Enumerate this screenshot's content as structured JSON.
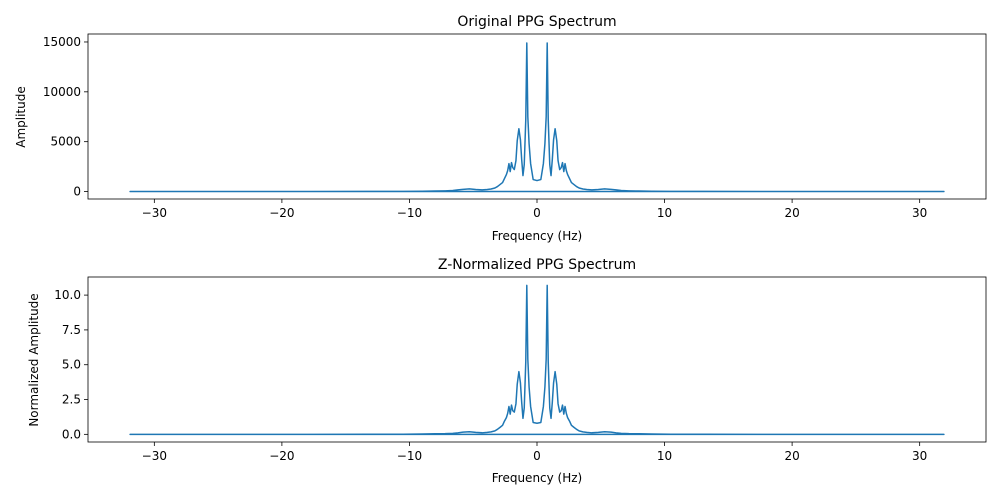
{
  "chart_data": [
    {
      "type": "line",
      "title": "Original PPG Spectrum",
      "xlabel": "Frequency (Hz)",
      "ylabel": "Amplitude",
      "xlim": [
        -35.2,
        35.2
      ],
      "ylim": [
        -750,
        15800
      ],
      "xticks": [
        -30,
        -20,
        -10,
        0,
        10,
        20,
        30
      ],
      "xtick_labels": [
        "−30",
        "−20",
        "−10",
        "0",
        "10",
        "20",
        "30"
      ],
      "yticks": [
        0,
        5000,
        10000,
        15000
      ],
      "ytick_labels": [
        "0",
        "5000",
        "10000",
        "15000"
      ],
      "grid": false,
      "series": [
        {
          "color": "#1f77b4",
          "x": [
            0,
            0.3,
            0.5,
            0.62,
            0.72,
            0.8,
            0.88,
            1.0,
            1.1,
            1.2,
            1.3,
            1.42,
            1.55,
            1.65,
            1.78,
            1.9,
            2.0,
            2.1,
            2.2,
            2.3,
            2.4,
            2.55,
            2.7,
            2.9,
            3.1,
            3.3,
            3.6,
            3.9,
            4.3,
            4.8,
            5.3,
            5.8,
            6.2,
            6.6,
            7.2,
            8.0,
            9.0,
            10.5,
            13.0,
            18.0,
            25.0,
            31.9,
            -31.9,
            -25.0,
            -18.0,
            -13.0,
            -10.5,
            -9.0,
            -8.0,
            -7.2,
            -6.6,
            -6.2,
            -5.8,
            -5.3,
            -4.8,
            -4.3,
            -3.9,
            -3.6,
            -3.3,
            -3.1,
            -2.9,
            -2.7,
            -2.55,
            -2.4,
            -2.3,
            -2.2,
            -2.1,
            -2.0,
            -1.9,
            -1.78,
            -1.65,
            -1.55,
            -1.42,
            -1.3,
            -1.2,
            -1.1,
            -1.0,
            -0.88,
            -0.8,
            -0.72,
            -0.62,
            -0.5,
            -0.3,
            0
          ],
          "y": [
            1100,
            1200,
            2800,
            4800,
            7500,
            14900,
            7200,
            2700,
            1600,
            3200,
            5200,
            6300,
            5100,
            3100,
            2200,
            2400,
            2900,
            2000,
            2800,
            2100,
            1700,
            1300,
            900,
            700,
            500,
            350,
            250,
            200,
            160,
            200,
            260,
            220,
            160,
            100,
            70,
            50,
            30,
            20,
            10,
            5,
            3,
            2,
            2,
            3,
            5,
            10,
            20,
            30,
            50,
            70,
            100,
            160,
            220,
            260,
            200,
            160,
            200,
            250,
            350,
            500,
            700,
            900,
            1300,
            1700,
            2100,
            2800,
            2000,
            2900,
            2400,
            2200,
            3100,
            5100,
            6300,
            5200,
            3200,
            1600,
            2700,
            7200,
            14900,
            7500,
            4800,
            2800,
            1200,
            1100
          ]
        }
      ]
    },
    {
      "type": "line",
      "title": "Z-Normalized PPG Spectrum",
      "xlabel": "Frequency (Hz)",
      "ylabel": "Normalized Amplitude",
      "xlim": [
        -35.2,
        35.2
      ],
      "ylim": [
        -0.55,
        11.3
      ],
      "xticks": [
        -30,
        -20,
        -10,
        0,
        10,
        20,
        30
      ],
      "xtick_labels": [
        "−30",
        "−20",
        "−10",
        "0",
        "10",
        "20",
        "30"
      ],
      "yticks": [
        0,
        2.5,
        5,
        7.5,
        10
      ],
      "ytick_labels": [
        "0.0",
        "2.5",
        "5.0",
        "7.5",
        "10.0"
      ],
      "grid": false,
      "series": [
        {
          "color": "#1f77b4",
          "x": [
            0,
            0.3,
            0.5,
            0.62,
            0.72,
            0.8,
            0.88,
            1.0,
            1.1,
            1.2,
            1.3,
            1.42,
            1.55,
            1.65,
            1.78,
            1.9,
            2.0,
            2.1,
            2.2,
            2.3,
            2.4,
            2.55,
            2.7,
            2.9,
            3.1,
            3.3,
            3.6,
            3.9,
            4.3,
            4.8,
            5.3,
            5.8,
            6.2,
            6.6,
            7.2,
            8.0,
            9.0,
            10.5,
            13.0,
            18.0,
            25.0,
            31.9,
            -31.9,
            -25.0,
            -18.0,
            -13.0,
            -10.5,
            -9.0,
            -8.0,
            -7.2,
            -6.6,
            -6.2,
            -5.8,
            -5.3,
            -4.8,
            -4.3,
            -3.9,
            -3.6,
            -3.3,
            -3.1,
            -2.9,
            -2.7,
            -2.55,
            -2.4,
            -2.3,
            -2.2,
            -2.1,
            -2.0,
            -1.9,
            -1.78,
            -1.65,
            -1.55,
            -1.42,
            -1.3,
            -1.2,
            -1.1,
            -1.0,
            -0.88,
            -0.8,
            -0.72,
            -0.62,
            -0.5,
            -0.3,
            0
          ],
          "y": [
            0.8,
            0.85,
            2.0,
            3.4,
            5.4,
            10.7,
            5.2,
            1.9,
            1.15,
            2.3,
            3.7,
            4.5,
            3.6,
            2.2,
            1.6,
            1.7,
            2.1,
            1.45,
            2.0,
            1.5,
            1.2,
            0.95,
            0.65,
            0.5,
            0.36,
            0.25,
            0.18,
            0.14,
            0.11,
            0.14,
            0.19,
            0.16,
            0.11,
            0.07,
            0.05,
            0.04,
            0.02,
            0.01,
            0.01,
            0.0,
            0.0,
            0.0,
            0.0,
            0.0,
            0.0,
            0.01,
            0.01,
            0.02,
            0.04,
            0.05,
            0.07,
            0.11,
            0.16,
            0.19,
            0.14,
            0.11,
            0.14,
            0.18,
            0.25,
            0.36,
            0.5,
            0.65,
            0.95,
            1.2,
            1.5,
            2.0,
            1.45,
            2.1,
            1.7,
            1.6,
            2.2,
            3.6,
            4.5,
            3.7,
            2.3,
            1.15,
            1.9,
            5.2,
            10.7,
            5.4,
            3.4,
            2.0,
            0.85,
            0.8
          ]
        }
      ]
    }
  ]
}
